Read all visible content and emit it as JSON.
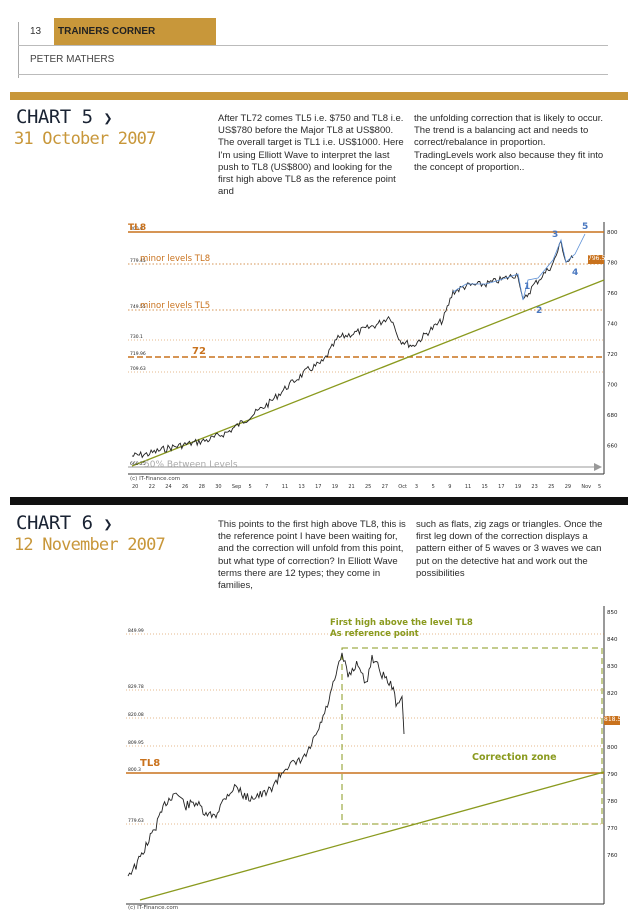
{
  "header": {
    "page_number": "13",
    "section": "TRAINERS CORNER",
    "author": "PETER MATHERS"
  },
  "colors": {
    "gold": "#c8973a",
    "olive": "#8a9a1e",
    "orange": "#c9721d",
    "navy": "#1a2333"
  },
  "chart5": {
    "title": "CHART 5",
    "arrow": "❯",
    "date": "31 October 2007",
    "col1": "After TL72 comes TL5 i.e. $750 and TL8 i.e. US$780 before the Major TL8 at US$800. The overall target is TL1 i.e. US$1000. Here I'm using Elliott Wave to interpret the last push to TL8 (US$800) and looking for the first high above TL8 as the reference point and",
    "col2": "the unfolding correction that is likely to occur. The trend is a balancing act and needs to correct/rebalance in proportion. TradingLevels work also because they fit into the concept of proportion..",
    "labels": {
      "tl8": "TL8",
      "minor1": "minor levels   TL8",
      "minor2": "minor levels   TL5",
      "l72": "72",
      "between": "50% Between Levels",
      "w1": "1",
      "w2": "2",
      "w3": "3",
      "w4": "4",
      "w5": "5"
    },
    "y_ticks": [
      "800",
      "780",
      "760",
      "740",
      "720",
      "700",
      "680",
      "660"
    ],
    "left_ticks": [
      "800.0",
      "779.45",
      "749.55",
      "730.1",
      "719.96",
      "709.63",
      "660.25"
    ],
    "x_ticks": [
      "20",
      "22",
      "24",
      "26",
      "28",
      "30",
      "Sep",
      "5",
      "7",
      "11",
      "13",
      "17",
      "19",
      "21",
      "25",
      "27",
      "Oct",
      "3",
      "5",
      "9",
      "11",
      "15",
      "17",
      "19",
      "23",
      "25",
      "29",
      "Nov",
      "5"
    ],
    "price_label": "796.5",
    "source": "(c) IT-Finance.com"
  },
  "chart6": {
    "title": "CHART 6",
    "arrow": "❯",
    "date": "12 November 2007",
    "col1": "This points to the first high above TL8, this is the reference point I have been waiting for, and the correction will unfold from this point, but what type of correction? In Elliott Wave terms there are 12 types; they come in families,",
    "col2": "such as flats, zig zags or triangles. Once the first leg down of the correction displays a pattern either of 5 waves or 3 waves we can put on the detective hat and work out the possibilities",
    "labels": {
      "annotation_line1": "First high above the level TL8",
      "annotation_line2": "As reference point",
      "correction": "Correction zone",
      "tl8": "TL8"
    },
    "y_ticks": [
      "850",
      "840",
      "830",
      "820",
      "810",
      "800",
      "790",
      "780",
      "770",
      "760"
    ],
    "left_ticks": [
      "849.99",
      "829.78",
      "820.08",
      "809.95",
      "800.3",
      "779.63"
    ],
    "price_label": "818.5",
    "source": "(c) IT-Finance.com"
  }
}
